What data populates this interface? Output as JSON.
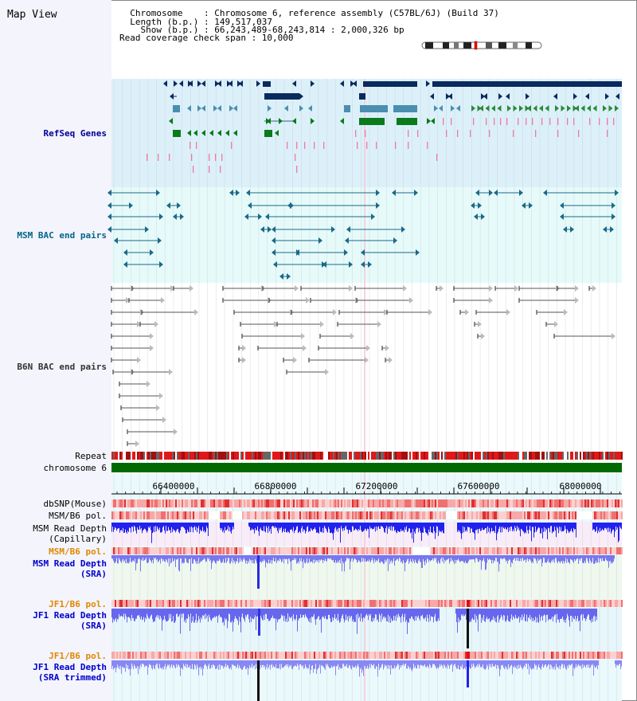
{
  "view_title": "Map View",
  "header": {
    "chromosome_line": "  Chromosome    : Chromosome 6, reference assembly (C57BL/6J) (Build 37)",
    "length_line": "  Length (b.p.) : 149,517,037",
    "show_line": "    Show (b.p.) : 66,243,489-68,243,814 : 2,000,326 bp",
    "coverage_line": "Read coverage check span : 10,000"
  },
  "tracks": {
    "refseq": "RefSeq Genes",
    "msm_bac": "MSM BAC end pairs",
    "b6n_bac": "B6N BAC end pairs",
    "repeat": "Repeat",
    "chromosome": "chromosome 6",
    "dbsnp": "dbSNP(Mouse)",
    "msm_b6_pol_1": "MSM/B6 pol.",
    "msm_cap_1": "MSM Read Depth",
    "msm_cap_2": "(Capillary)",
    "msm_b6_pol_2": "MSM/B6 pol.",
    "msm_sra_1": "MSM Read Depth",
    "msm_sra_2": "(SRA)",
    "jf1_pol_1": "JF1/B6 pol.",
    "jf1_sra_1": "JF1 Read Depth",
    "jf1_sra_2": "(SRA)",
    "jf1_pol_2": "JF1/B6 pol.",
    "jf1_trim_1": "JF1 Read Depth",
    "jf1_trim_2": "(SRA trimmed)"
  },
  "axis": {
    "ticks": [
      "66400000",
      "66800000",
      "67200000",
      "67600000",
      "68000000"
    ]
  },
  "colors": {
    "refseq_label": "#000099",
    "msm_label": "#006688",
    "b6n_label": "#333333",
    "pol_orange": "#e08800",
    "depth_blue": "#0000cc",
    "gene_dark": "#0a2a5e",
    "gene_mid": "#4a8fb0",
    "gene_green": "#0a7a1a",
    "chromosome_green": "#006a00"
  }
}
